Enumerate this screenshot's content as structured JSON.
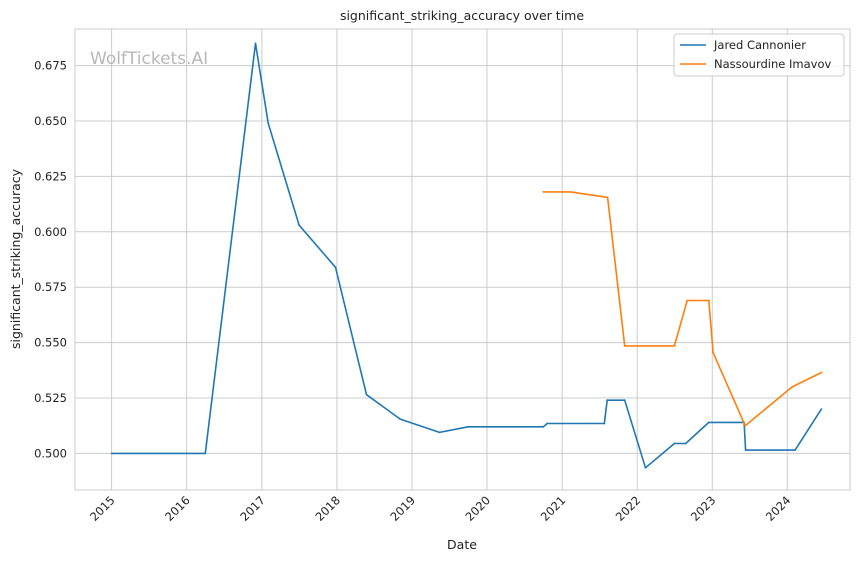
{
  "chart_data": {
    "type": "line",
    "title": "significant_striking_accuracy over time",
    "xlabel": "Date",
    "ylabel": "significant_striking_accuracy",
    "watermark": "WolfTickets.AI",
    "x_ticks": [
      "2015",
      "2016",
      "2017",
      "2018",
      "2019",
      "2020",
      "2021",
      "2022",
      "2023",
      "2024"
    ],
    "y_ticks": [
      "0.500",
      "0.525",
      "0.550",
      "0.575",
      "0.600",
      "0.625",
      "0.650",
      "0.675"
    ],
    "xlim": [
      "2014-07-07",
      "2024-11-01"
    ],
    "ylim": [
      0.4835,
      0.6915
    ],
    "grid": true,
    "legend_position": "top-right",
    "series": [
      {
        "name": "Jared Cannonier",
        "color": "#1f77b4",
        "points": [
          [
            "2015-01-01",
            0.5
          ],
          [
            "2016-04-01",
            0.5
          ],
          [
            "2016-12-01",
            0.685
          ],
          [
            "2017-02-01",
            0.649
          ],
          [
            "2017-07-01",
            0.603
          ],
          [
            "2017-12-25",
            0.584
          ],
          [
            "2018-05-25",
            0.5265
          ],
          [
            "2018-11-05",
            0.5155
          ],
          [
            "2019-05-15",
            0.5095
          ],
          [
            "2019-10-01",
            0.512
          ],
          [
            "2020-10-01",
            0.512
          ],
          [
            "2020-10-20",
            0.5135
          ],
          [
            "2021-07-25",
            0.5135
          ],
          [
            "2021-08-08",
            0.524
          ],
          [
            "2021-11-01",
            0.524
          ],
          [
            "2022-02-10",
            0.4935
          ],
          [
            "2022-07-01",
            0.5045
          ],
          [
            "2022-08-25",
            0.5045
          ],
          [
            "2022-12-15",
            0.514
          ],
          [
            "2023-06-05",
            0.514
          ],
          [
            "2023-06-12",
            0.5015
          ],
          [
            "2024-02-08",
            0.5015
          ],
          [
            "2024-06-15",
            0.52
          ]
        ]
      },
      {
        "name": "Nassourdine Imavov",
        "color": "#ff7f0e",
        "points": [
          [
            "2020-10-01",
            0.618
          ],
          [
            "2021-02-10",
            0.618
          ],
          [
            "2021-08-10",
            0.6155
          ],
          [
            "2021-11-01",
            0.5485
          ],
          [
            "2022-07-01",
            0.5485
          ],
          [
            "2022-09-01",
            0.569
          ],
          [
            "2022-12-15",
            0.569
          ],
          [
            "2023-01-05",
            0.5455
          ],
          [
            "2023-06-10",
            0.5125
          ],
          [
            "2024-01-25",
            0.53
          ],
          [
            "2024-06-15",
            0.5365
          ]
        ]
      }
    ]
  }
}
